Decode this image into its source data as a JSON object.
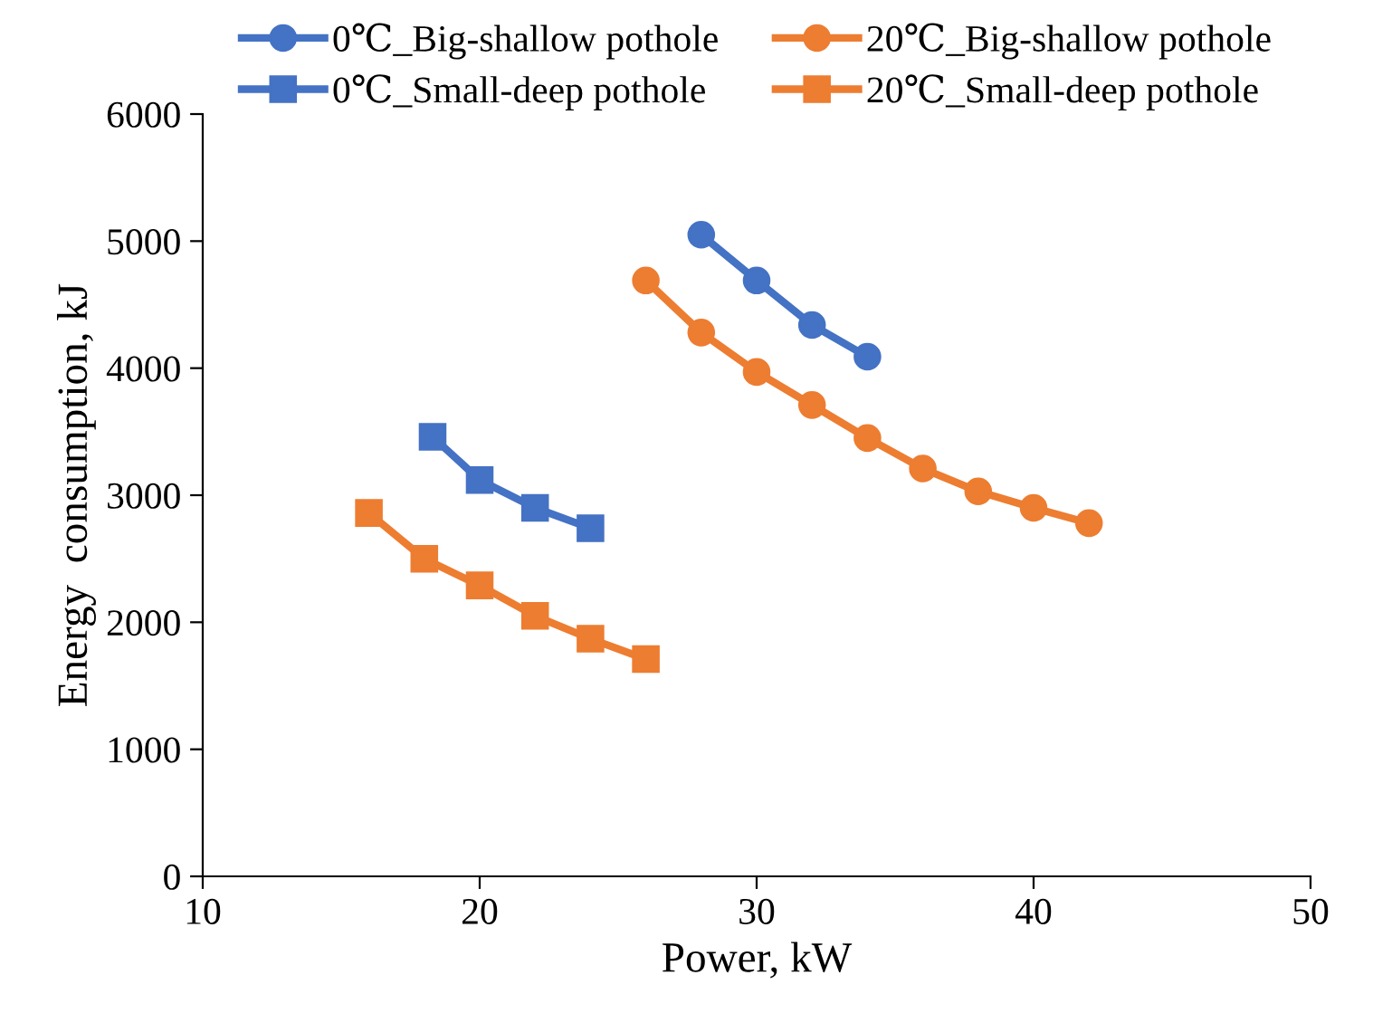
{
  "chart_data": {
    "type": "line",
    "xlabel": "Power, kW",
    "ylabel": "Energy  consumption, kJ",
    "xlim": [
      10,
      50
    ],
    "xticks": [
      10,
      20,
      30,
      40,
      50
    ],
    "ylim": [
      0,
      6000
    ],
    "yticks": [
      0,
      1000,
      2000,
      3000,
      4000,
      5000,
      6000
    ],
    "grid": false,
    "legend": "top",
    "line_style": "solid",
    "series": [
      {
        "name": "0℃_Big-shallow pothole",
        "color": "#4472c4",
        "marker": "circle",
        "x": [
          28,
          30,
          32,
          34
        ],
        "values": [
          5050,
          4690,
          4340,
          4090
        ]
      },
      {
        "name": "20℃_Big-shallow pothole",
        "color": "#ed7d31",
        "marker": "circle",
        "x": [
          26,
          28,
          30,
          32,
          34,
          36,
          38,
          40,
          42
        ],
        "values": [
          4690,
          4280,
          3970,
          3710,
          3450,
          3210,
          3030,
          2900,
          2780
        ]
      },
      {
        "name": "0℃_Small-deep pothole",
        "color": "#4472c4",
        "marker": "square",
        "x": [
          18.3,
          20,
          22,
          24
        ],
        "values": [
          3460,
          3120,
          2900,
          2740
        ]
      },
      {
        "name": "20℃_Small-deep pothole",
        "color": "#ed7d31",
        "marker": "square",
        "x": [
          16,
          18,
          20,
          22,
          24,
          26
        ],
        "values": [
          2860,
          2500,
          2290,
          2050,
          1870,
          1710
        ]
      }
    ]
  }
}
